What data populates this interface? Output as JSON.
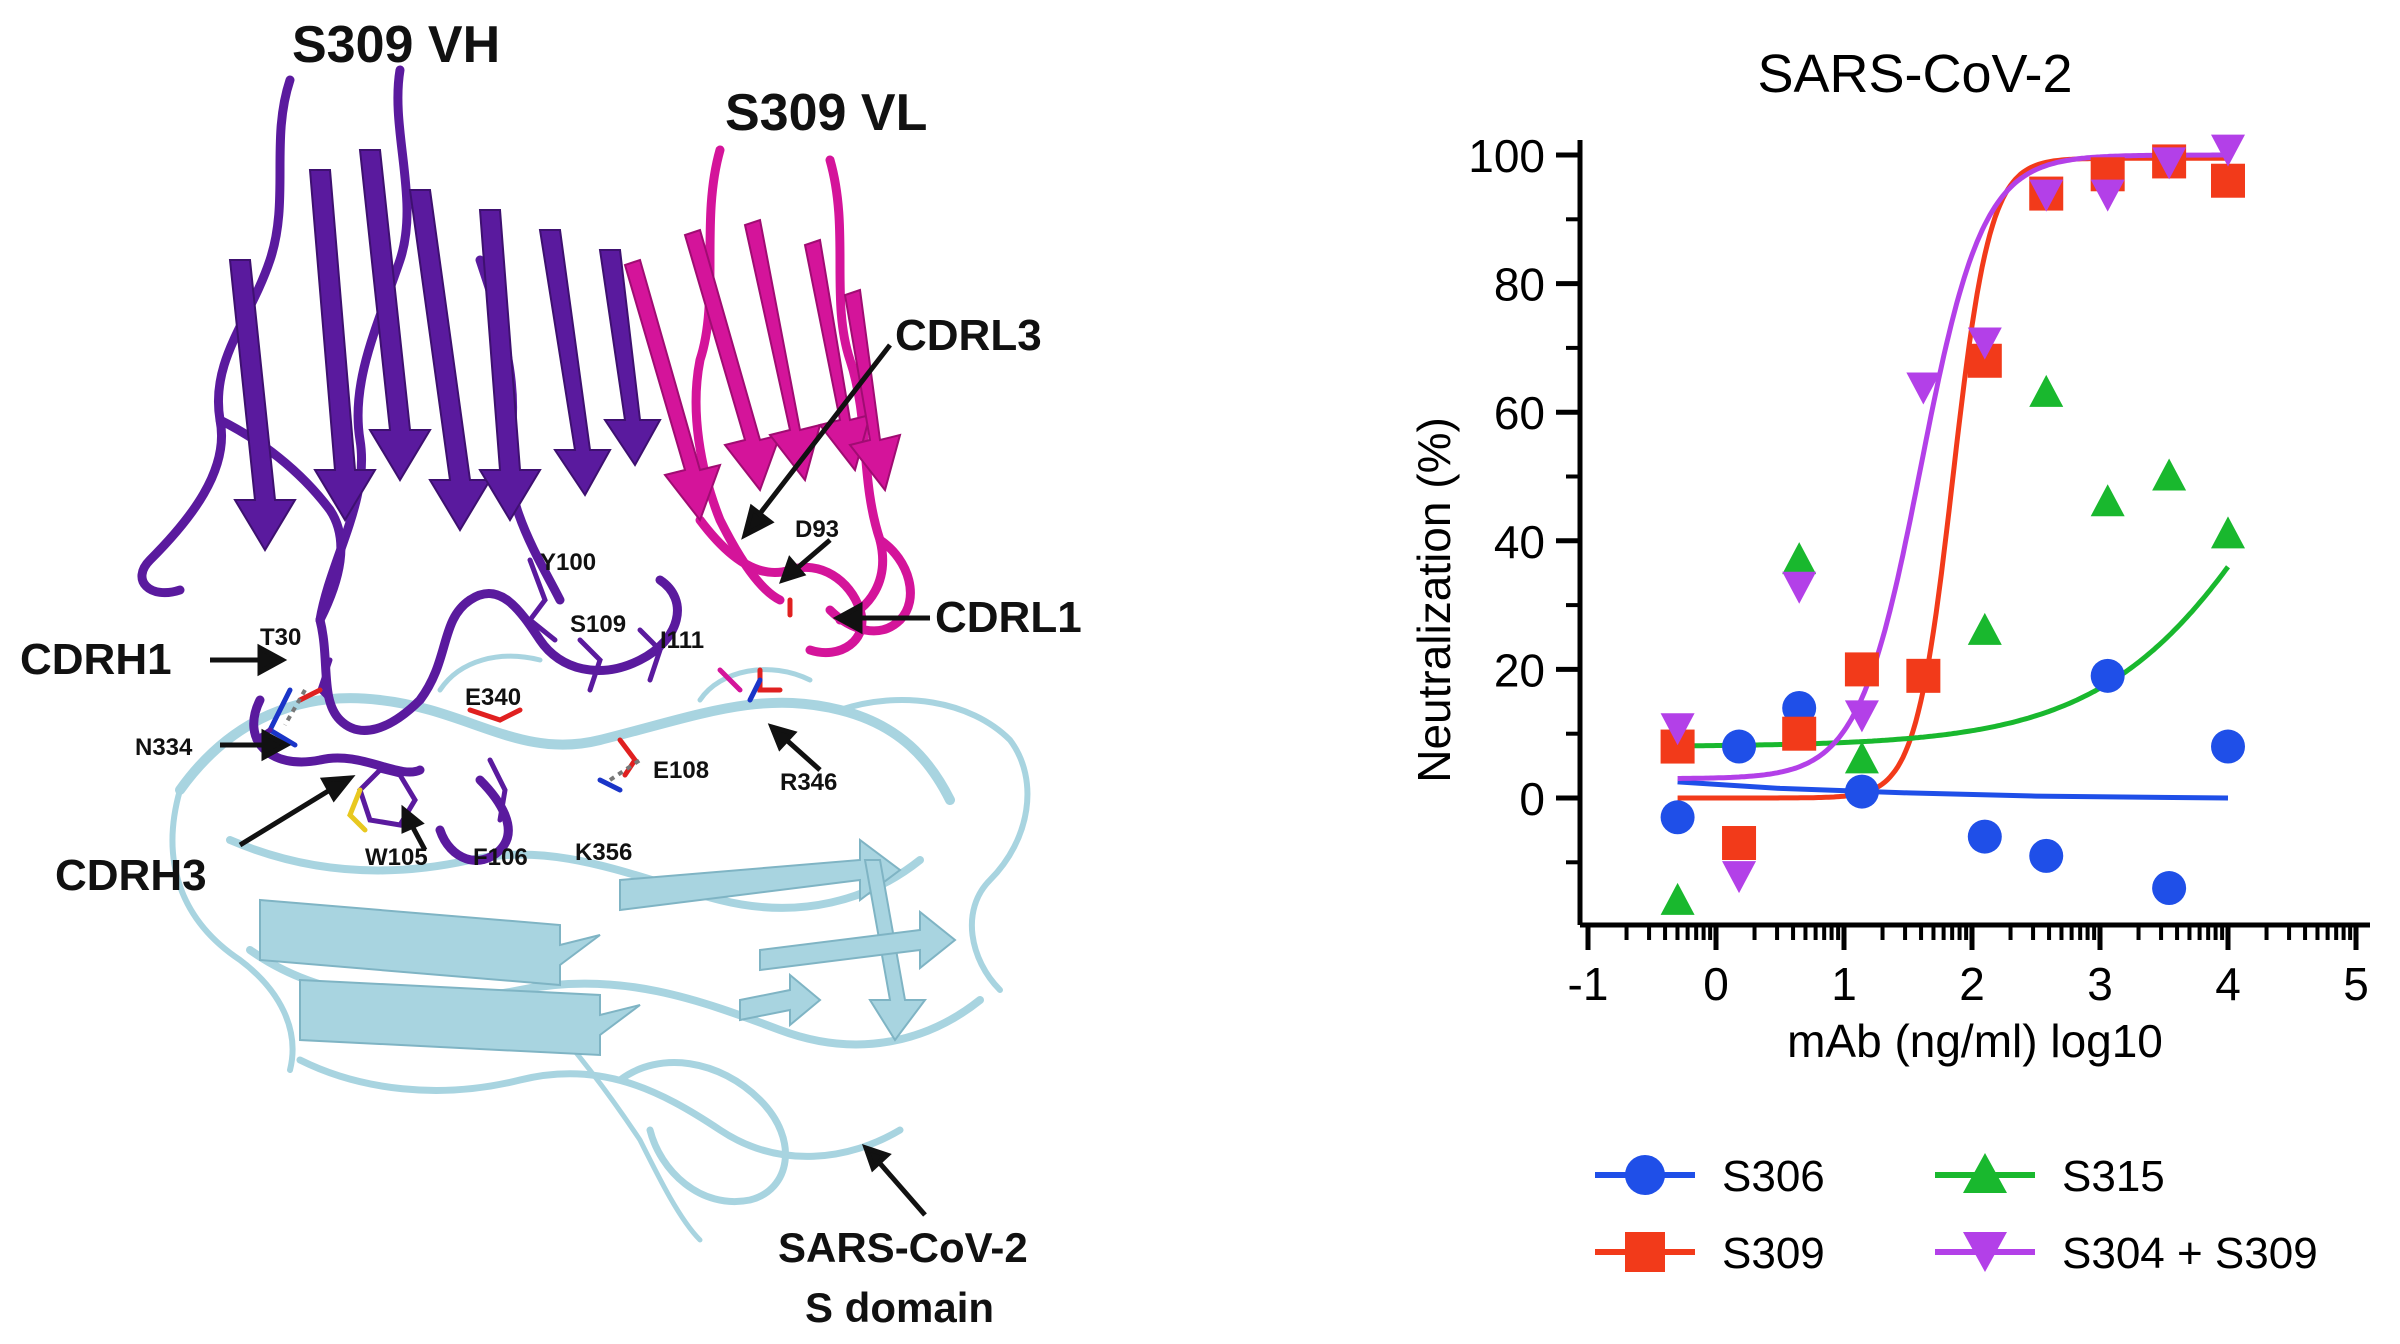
{
  "structure_panel": {
    "labels": {
      "vh": "S309 VH",
      "vl": "S309 VL",
      "cdrl3": "CDRL3",
      "cdrl1": "CDRL1",
      "cdrh1": "CDRH1",
      "cdrh3": "CDRH3",
      "rbd_line1": "SARS-CoV-2",
      "rbd_line2": "S  domain"
    },
    "residues": {
      "d93": "D93",
      "y100": "Y100",
      "t30": "T30",
      "s109": "S109",
      "i111": "I111",
      "e340": "E340",
      "n334": "N334",
      "e108": "E108",
      "r346": "R346",
      "w105": "W105",
      "f106": "F106",
      "k356": "K356"
    },
    "colors": {
      "vh": "#5a1a9e",
      "vl": "#d4149a",
      "rbd": "#a8d4e0"
    }
  },
  "chart_data": {
    "type": "scatter",
    "title": "SARS-CoV-2",
    "xlabel": "mAb (ng/ml) log10",
    "ylabel": "Neutralization (%)",
    "xlim": [
      -1,
      5
    ],
    "ylim": [
      -20,
      100
    ],
    "xticks": [
      "-1",
      "0",
      "1",
      "2",
      "3",
      "4",
      "5"
    ],
    "yticks": [
      "0",
      "20",
      "40",
      "60",
      "80",
      "100"
    ],
    "x": [
      -0.3,
      0.18,
      0.65,
      1.14,
      1.62,
      2.1,
      2.58,
      3.06,
      3.54,
      4.0
    ],
    "series": [
      {
        "name": "S306",
        "color": "#1f4fe8",
        "marker": "circle",
        "values": [
          -3,
          8,
          14,
          1,
          null,
          -6,
          -9,
          19,
          -14,
          8
        ],
        "fit": [
          [
            -0.3,
            2.5
          ],
          [
            0.5,
            1.5
          ],
          [
            1.5,
            0.8
          ],
          [
            2.5,
            0.3
          ],
          [
            4.0,
            0.0
          ]
        ]
      },
      {
        "name": "S309",
        "color": "#f23a1a",
        "marker": "square",
        "values": [
          8,
          -7,
          10,
          20,
          19,
          68,
          94,
          97,
          99,
          96
        ],
        "fit_params": {
          "bottom": 0,
          "top": 99.5,
          "logec50": 1.85,
          "hill": 3.0
        }
      },
      {
        "name": "S315",
        "color": "#19b82e",
        "marker": "triangle-up",
        "values": [
          -16,
          null,
          37,
          6,
          null,
          26,
          63,
          46,
          50,
          41
        ],
        "fit_params": {
          "bottom": 8,
          "top": 100,
          "logec50": 4.6,
          "hill": 0.6
        }
      },
      {
        "name": "S304 + S309",
        "color": "#b340e8",
        "marker": "triangle-down",
        "values": [
          11,
          -12,
          33,
          13,
          64,
          71,
          94,
          94,
          99,
          101
        ],
        "fit_params": {
          "bottom": 3,
          "top": 100,
          "logec50": 1.6,
          "hill": 1.8
        }
      }
    ],
    "legend": {
      "placement": "bottom",
      "entries": [
        "S306",
        "S315",
        "S309",
        "S304 + S309"
      ]
    }
  }
}
